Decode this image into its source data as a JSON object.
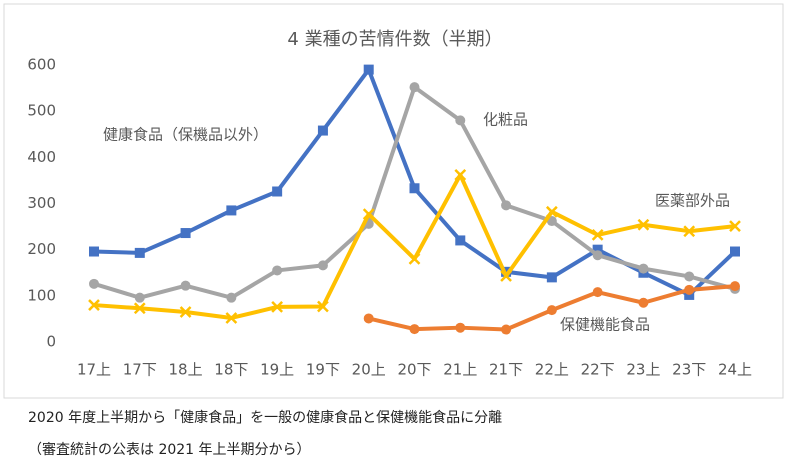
{
  "chart_data": {
    "type": "line",
    "title": "4 業種の苦情件数（半期）",
    "categories": [
      "17上",
      "17下",
      "18上",
      "18下",
      "19上",
      "19下",
      "20上",
      "20下",
      "21上",
      "21下",
      "22上",
      "22下",
      "23上",
      "23下",
      "24上"
    ],
    "series": [
      {
        "name": "健康食品（保機品以外）",
        "color": "#4472c4",
        "marker": "square",
        "values": [
          196,
          193,
          236,
          285,
          326,
          458,
          590,
          333,
          220,
          152,
          140,
          200,
          150,
          102,
          196
        ]
      },
      {
        "name": "化粧品",
        "color": "#a5a5a5",
        "marker": "circle",
        "values": [
          126,
          96,
          122,
          96,
          155,
          166,
          256,
          552,
          480,
          296,
          262,
          188,
          159,
          142,
          115
        ]
      },
      {
        "name": "医薬部外品",
        "color": "#ffc000",
        "marker": "x",
        "values": [
          80,
          73,
          65,
          52,
          76,
          77,
          277,
          180,
          362,
          143,
          282,
          232,
          254,
          240,
          251
        ]
      },
      {
        "name": "保健機能食品",
        "color": "#ed7d31",
        "marker": "circle",
        "values": [
          null,
          null,
          null,
          null,
          null,
          null,
          51,
          28,
          31,
          27,
          69,
          108,
          85,
          113,
          121
        ]
      }
    ],
    "ylim": [
      0,
      600
    ],
    "yticks": [
      0,
      100,
      200,
      300,
      400,
      500,
      600
    ],
    "grid": false
  },
  "notes": [
    "2020 年度上半期から「健康食品」を一般の健康食品と保健機能食品に分離",
    "（審査統計の公表は 2021 年上半期分から）"
  ]
}
